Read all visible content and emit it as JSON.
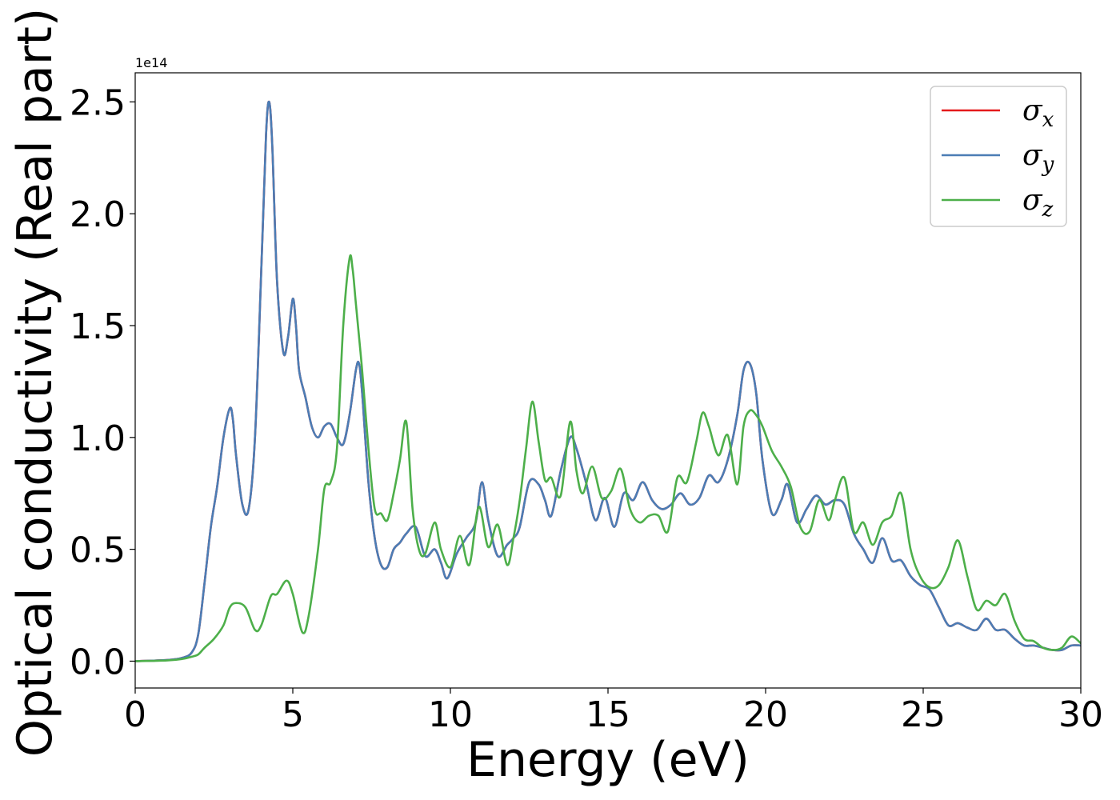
{
  "chart_data": {
    "type": "line",
    "title": "",
    "xlabel": "Energy (eV)",
    "ylabel": "Optical conductivity (Real part)",
    "y_offset_label": "1e14",
    "xlim": [
      0,
      30
    ],
    "ylim": [
      -0.12,
      2.63
    ],
    "x_ticks": [
      0,
      5,
      10,
      15,
      20,
      25,
      30
    ],
    "x_tick_labels": [
      "0",
      "5",
      "10",
      "15",
      "20",
      "25",
      "30"
    ],
    "y_ticks": [
      0.0,
      0.5,
      1.0,
      1.5,
      2.0,
      2.5
    ],
    "y_tick_labels": [
      "0.0",
      "0.5",
      "1.0",
      "1.5",
      "2.0",
      "2.5"
    ],
    "grid": false,
    "legend_position": "top-right",
    "series": [
      {
        "name": "σx",
        "legend_base": "σ",
        "legend_sub": "x",
        "color": "#e41a1c",
        "x": [
          0,
          1,
          1.5,
          1.8,
          2.0,
          2.2,
          2.4,
          2.6,
          2.8,
          3.0,
          3.1,
          3.2,
          3.4,
          3.6,
          3.8,
          4.0,
          4.15,
          4.25,
          4.35,
          4.5,
          4.7,
          4.85,
          5.0,
          5.1,
          5.2,
          5.4,
          5.6,
          5.8,
          6.0,
          6.2,
          6.4,
          6.6,
          6.8,
          7.0,
          7.1,
          7.2,
          7.4,
          7.6,
          7.8,
          8.0,
          8.2,
          8.4,
          8.6,
          8.9,
          9.2,
          9.5,
          9.7,
          9.9,
          10.2,
          10.5,
          10.8,
          11.0,
          11.2,
          11.5,
          11.8,
          12.0,
          12.2,
          12.5,
          12.8,
          13.0,
          13.2,
          13.5,
          13.8,
          14.0,
          14.3,
          14.6,
          14.9,
          15.2,
          15.5,
          15.8,
          16.1,
          16.4,
          16.7,
          17.0,
          17.3,
          17.6,
          17.9,
          18.2,
          18.5,
          18.8,
          19.1,
          19.3,
          19.5,
          19.7,
          19.9,
          20.2,
          20.5,
          20.7,
          21.0,
          21.3,
          21.6,
          21.9,
          22.2,
          22.5,
          22.8,
          23.1,
          23.4,
          23.7,
          24.0,
          24.3,
          24.6,
          24.9,
          25.2,
          25.5,
          25.8,
          26.1,
          26.4,
          26.7,
          27.0,
          27.3,
          27.6,
          27.9,
          28.2,
          28.5,
          28.8,
          29.1,
          29.4,
          29.7,
          30.0
        ],
        "values": [
          0.0,
          0.005,
          0.015,
          0.04,
          0.12,
          0.35,
          0.6,
          0.78,
          1.0,
          1.13,
          1.08,
          0.92,
          0.7,
          0.68,
          1.0,
          1.75,
          2.35,
          2.5,
          2.3,
          1.7,
          1.38,
          1.45,
          1.62,
          1.5,
          1.3,
          1.18,
          1.05,
          1.0,
          1.05,
          1.06,
          1.0,
          0.97,
          1.1,
          1.3,
          1.33,
          1.2,
          0.8,
          0.55,
          0.43,
          0.42,
          0.5,
          0.53,
          0.57,
          0.6,
          0.47,
          0.5,
          0.44,
          0.37,
          0.48,
          0.55,
          0.62,
          0.8,
          0.63,
          0.47,
          0.52,
          0.55,
          0.6,
          0.8,
          0.79,
          0.72,
          0.65,
          0.85,
          1.0,
          0.95,
          0.8,
          0.63,
          0.73,
          0.6,
          0.75,
          0.72,
          0.8,
          0.72,
          0.68,
          0.7,
          0.75,
          0.7,
          0.73,
          0.83,
          0.8,
          0.9,
          1.1,
          1.3,
          1.33,
          1.2,
          0.9,
          0.66,
          0.72,
          0.79,
          0.62,
          0.68,
          0.74,
          0.7,
          0.72,
          0.7,
          0.57,
          0.5,
          0.44,
          0.55,
          0.45,
          0.45,
          0.38,
          0.34,
          0.32,
          0.24,
          0.16,
          0.17,
          0.15,
          0.14,
          0.19,
          0.14,
          0.14,
          0.1,
          0.07,
          0.07,
          0.06,
          0.05,
          0.05,
          0.07,
          0.07
        ]
      },
      {
        "name": "σy",
        "legend_base": "σ",
        "legend_sub": "y",
        "color": "#4b7db5",
        "x": [
          0,
          1,
          1.5,
          1.8,
          2.0,
          2.2,
          2.4,
          2.6,
          2.8,
          3.0,
          3.1,
          3.2,
          3.4,
          3.6,
          3.8,
          4.0,
          4.15,
          4.25,
          4.35,
          4.5,
          4.7,
          4.85,
          5.0,
          5.1,
          5.2,
          5.4,
          5.6,
          5.8,
          6.0,
          6.2,
          6.4,
          6.6,
          6.8,
          7.0,
          7.1,
          7.2,
          7.4,
          7.6,
          7.8,
          8.0,
          8.2,
          8.4,
          8.6,
          8.9,
          9.2,
          9.5,
          9.7,
          9.9,
          10.2,
          10.5,
          10.8,
          11.0,
          11.2,
          11.5,
          11.8,
          12.0,
          12.2,
          12.5,
          12.8,
          13.0,
          13.2,
          13.5,
          13.8,
          14.0,
          14.3,
          14.6,
          14.9,
          15.2,
          15.5,
          15.8,
          16.1,
          16.4,
          16.7,
          17.0,
          17.3,
          17.6,
          17.9,
          18.2,
          18.5,
          18.8,
          19.1,
          19.3,
          19.5,
          19.7,
          19.9,
          20.2,
          20.5,
          20.7,
          21.0,
          21.3,
          21.6,
          21.9,
          22.2,
          22.5,
          22.8,
          23.1,
          23.4,
          23.7,
          24.0,
          24.3,
          24.6,
          24.9,
          25.2,
          25.5,
          25.8,
          26.1,
          26.4,
          26.7,
          27.0,
          27.3,
          27.6,
          27.9,
          28.2,
          28.5,
          28.8,
          29.1,
          29.4,
          29.7,
          30.0
        ],
        "values": [
          0.0,
          0.005,
          0.015,
          0.04,
          0.12,
          0.35,
          0.6,
          0.78,
          1.0,
          1.13,
          1.08,
          0.92,
          0.7,
          0.68,
          1.0,
          1.75,
          2.35,
          2.5,
          2.3,
          1.7,
          1.38,
          1.45,
          1.62,
          1.5,
          1.3,
          1.18,
          1.05,
          1.0,
          1.05,
          1.06,
          1.0,
          0.97,
          1.1,
          1.3,
          1.33,
          1.2,
          0.8,
          0.55,
          0.43,
          0.42,
          0.5,
          0.53,
          0.57,
          0.6,
          0.47,
          0.5,
          0.44,
          0.37,
          0.48,
          0.55,
          0.62,
          0.8,
          0.63,
          0.47,
          0.52,
          0.55,
          0.6,
          0.8,
          0.79,
          0.72,
          0.65,
          0.85,
          1.0,
          0.95,
          0.8,
          0.63,
          0.73,
          0.6,
          0.75,
          0.72,
          0.8,
          0.72,
          0.68,
          0.7,
          0.75,
          0.7,
          0.73,
          0.83,
          0.8,
          0.9,
          1.1,
          1.3,
          1.33,
          1.2,
          0.9,
          0.66,
          0.72,
          0.79,
          0.62,
          0.68,
          0.74,
          0.7,
          0.72,
          0.7,
          0.57,
          0.5,
          0.44,
          0.55,
          0.45,
          0.45,
          0.38,
          0.34,
          0.32,
          0.24,
          0.16,
          0.17,
          0.15,
          0.14,
          0.19,
          0.14,
          0.14,
          0.1,
          0.07,
          0.07,
          0.06,
          0.05,
          0.05,
          0.07,
          0.07
        ]
      },
      {
        "name": "σz",
        "legend_base": "σ",
        "legend_sub": "z",
        "color": "#4daf4a",
        "x": [
          0,
          1,
          1.5,
          1.8,
          2.0,
          2.2,
          2.5,
          2.8,
          3.0,
          3.2,
          3.5,
          3.8,
          4.0,
          4.3,
          4.5,
          4.8,
          5.0,
          5.3,
          5.5,
          5.8,
          6.0,
          6.2,
          6.4,
          6.6,
          6.8,
          6.9,
          7.0,
          7.2,
          7.4,
          7.6,
          7.8,
          8.0,
          8.2,
          8.4,
          8.6,
          8.8,
          9.0,
          9.2,
          9.5,
          9.7,
          10.0,
          10.3,
          10.6,
          10.9,
          11.2,
          11.5,
          11.8,
          12.0,
          12.2,
          12.4,
          12.6,
          12.8,
          13.0,
          13.2,
          13.5,
          13.8,
          14.0,
          14.2,
          14.5,
          14.8,
          15.1,
          15.4,
          15.7,
          16.0,
          16.3,
          16.6,
          16.9,
          17.2,
          17.5,
          17.8,
          18.0,
          18.2,
          18.5,
          18.8,
          19.1,
          19.3,
          19.5,
          19.7,
          19.9,
          20.2,
          20.5,
          20.8,
          21.1,
          21.4,
          21.7,
          22.0,
          22.2,
          22.5,
          22.8,
          23.1,
          23.4,
          23.7,
          24.0,
          24.3,
          24.6,
          24.9,
          25.2,
          25.5,
          25.8,
          26.1,
          26.4,
          26.7,
          27.0,
          27.3,
          27.6,
          27.9,
          28.2,
          28.5,
          28.8,
          29.1,
          29.4,
          29.7,
          30.0
        ],
        "values": [
          0.0,
          0.003,
          0.01,
          0.02,
          0.03,
          0.06,
          0.1,
          0.16,
          0.24,
          0.26,
          0.24,
          0.14,
          0.16,
          0.29,
          0.3,
          0.36,
          0.3,
          0.13,
          0.2,
          0.5,
          0.77,
          0.8,
          0.95,
          1.5,
          1.8,
          1.75,
          1.6,
          1.3,
          0.95,
          0.68,
          0.66,
          0.63,
          0.75,
          0.9,
          1.07,
          0.68,
          0.5,
          0.48,
          0.62,
          0.5,
          0.42,
          0.56,
          0.43,
          0.69,
          0.51,
          0.61,
          0.43,
          0.55,
          0.72,
          0.95,
          1.16,
          0.98,
          0.81,
          0.82,
          0.74,
          1.07,
          0.85,
          0.75,
          0.87,
          0.73,
          0.76,
          0.86,
          0.68,
          0.62,
          0.65,
          0.65,
          0.58,
          0.82,
          0.8,
          0.98,
          1.11,
          1.05,
          0.92,
          1.01,
          0.79,
          1.05,
          1.12,
          1.1,
          1.05,
          0.94,
          0.87,
          0.78,
          0.6,
          0.58,
          0.72,
          0.63,
          0.72,
          0.82,
          0.58,
          0.62,
          0.52,
          0.62,
          0.65,
          0.75,
          0.5,
          0.38,
          0.33,
          0.34,
          0.42,
          0.54,
          0.38,
          0.23,
          0.27,
          0.25,
          0.3,
          0.18,
          0.1,
          0.09,
          0.06,
          0.05,
          0.06,
          0.11,
          0.08
        ]
      }
    ]
  }
}
